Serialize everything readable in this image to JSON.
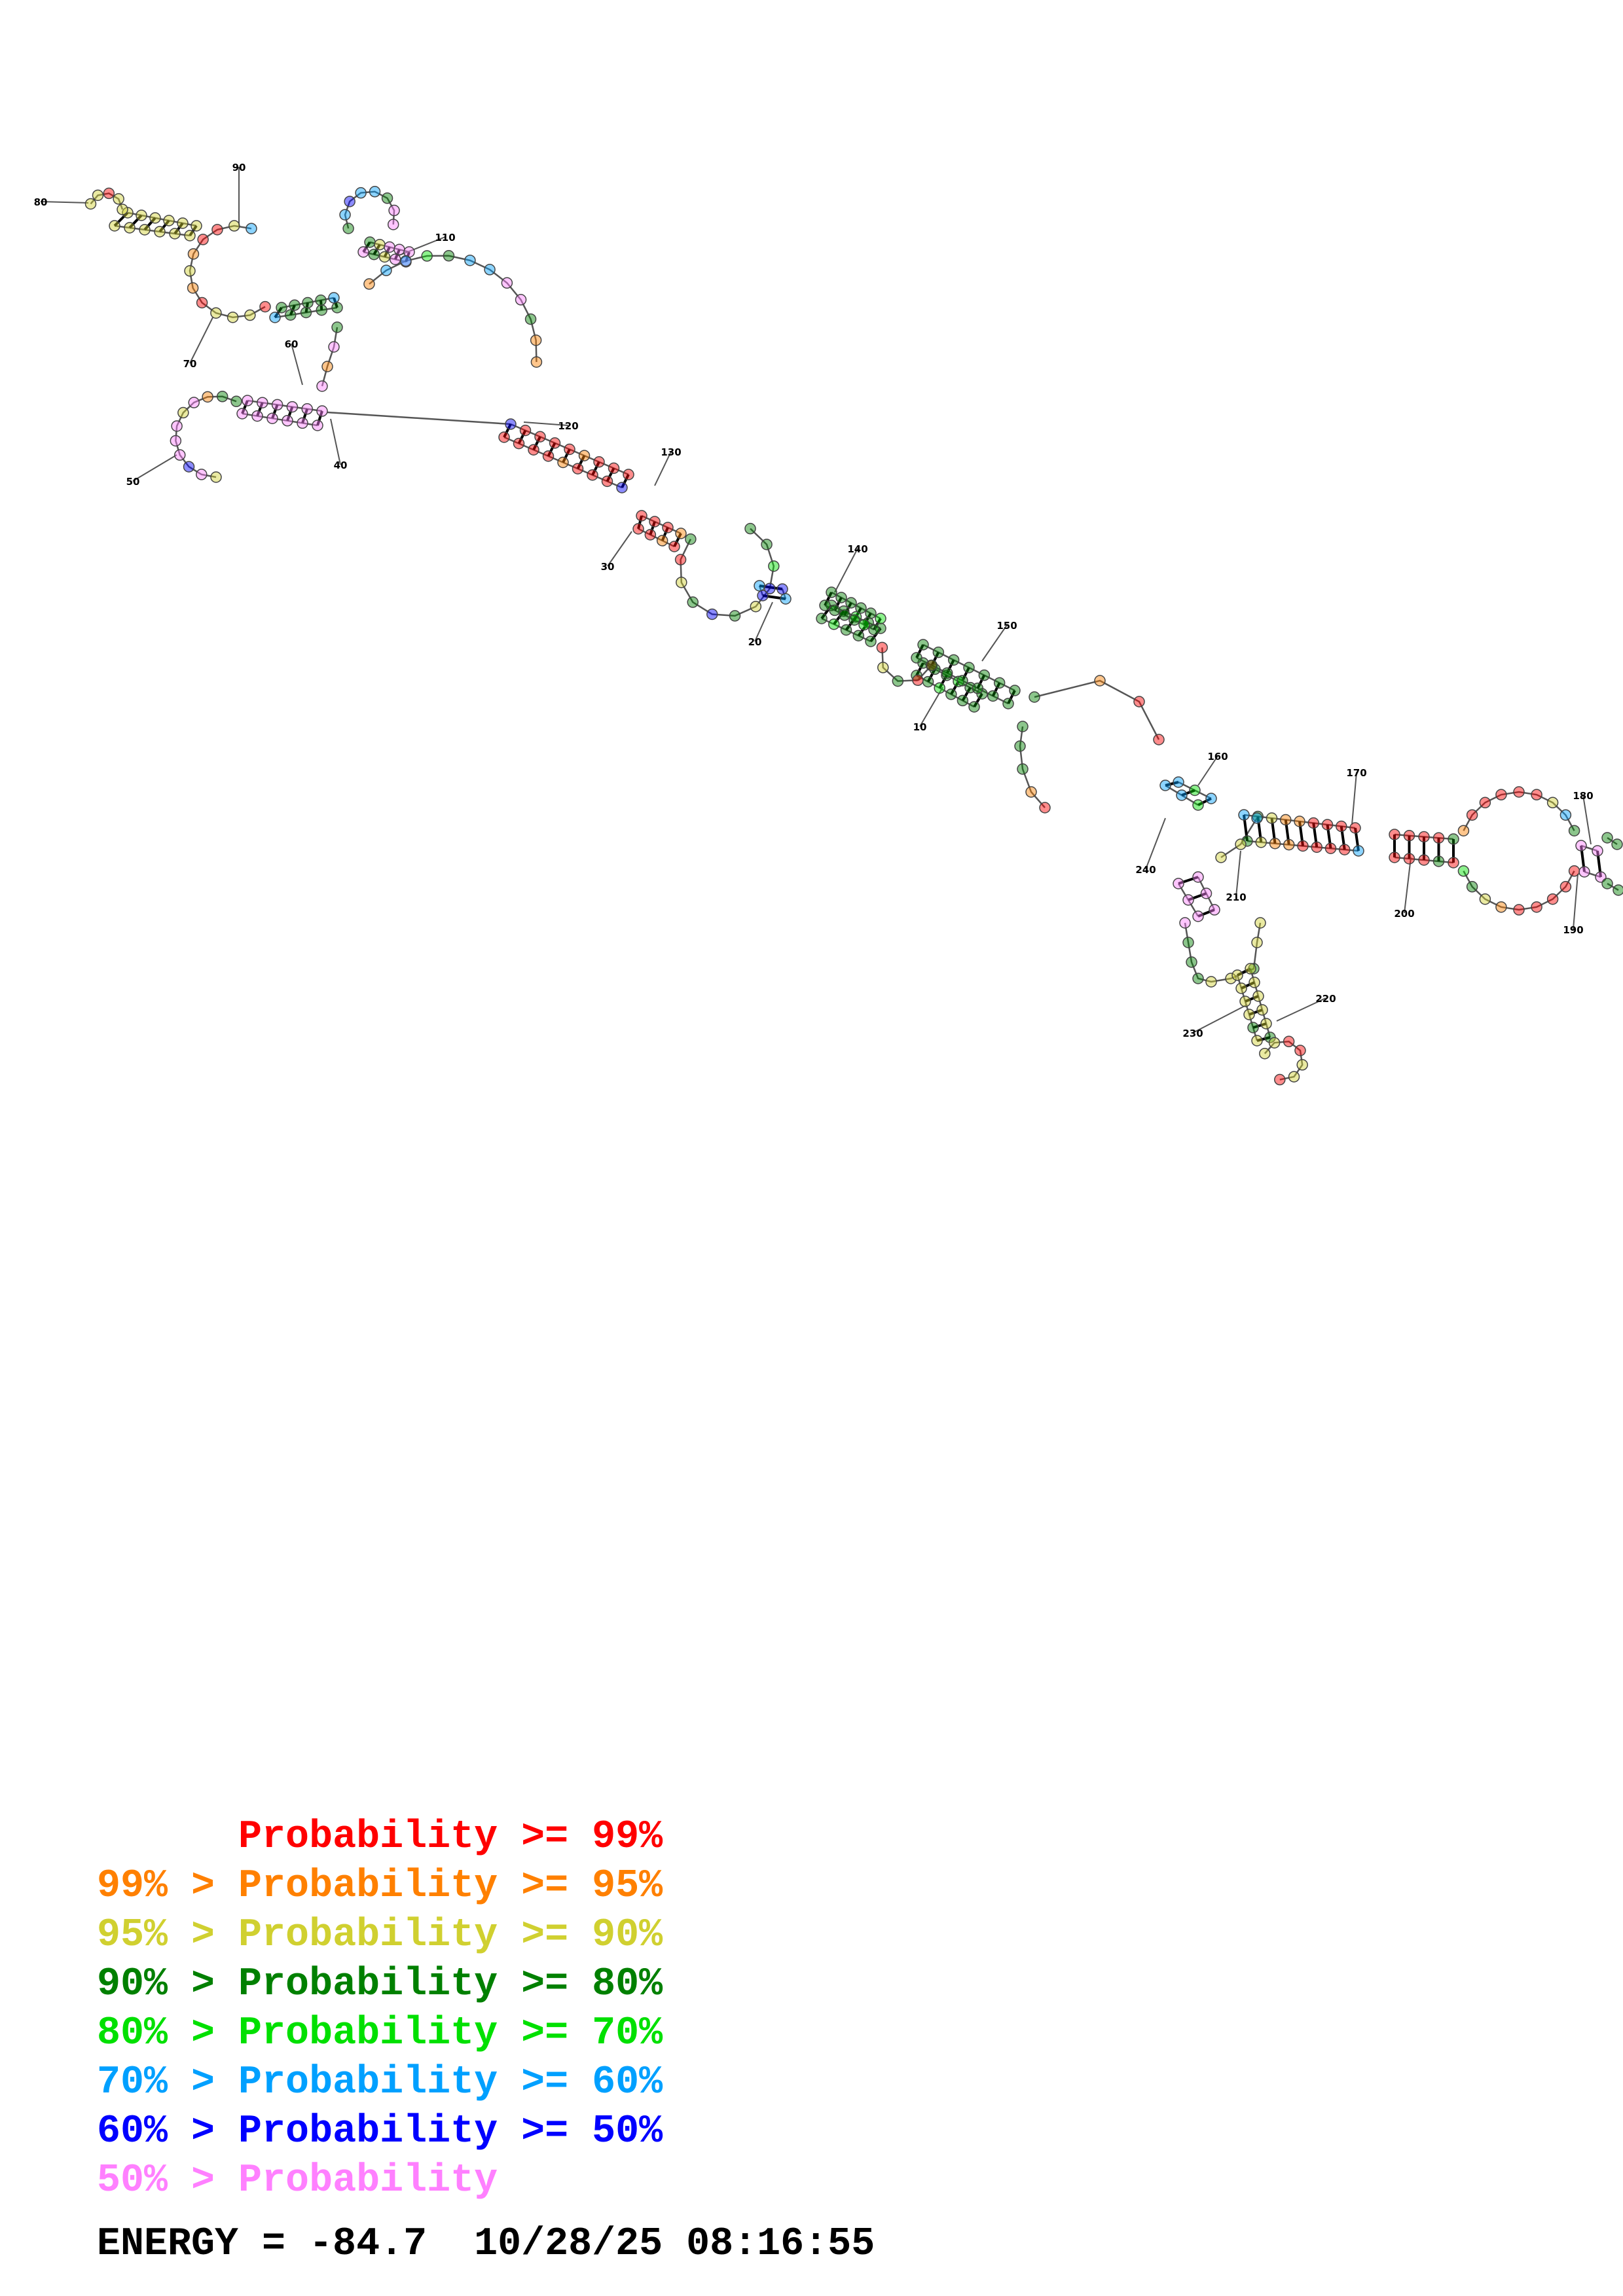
{
  "colors": {
    "p99": "#ff0000",
    "p95": "#ff8000",
    "p90": "#d0d030",
    "p80": "#008000",
    "p70": "#00e000",
    "p60": "#00a0ff",
    "p50": "#0000ff",
    "plow": "#ff80ff"
  },
  "legend": {
    "rows": [
      {
        "prefix": "",
        "label": "Probability >= 99%",
        "color_key": "p99"
      },
      {
        "prefix": "99% > ",
        "label": "Probability >= 95%",
        "color_key": "p95"
      },
      {
        "prefix": "95% > ",
        "label": "Probability >= 90%",
        "color_key": "p90"
      },
      {
        "prefix": "90% > ",
        "label": "Probability >= 80%",
        "color_key": "p80"
      },
      {
        "prefix": "80% > ",
        "label": "Probability >= 70%",
        "color_key": "p70"
      },
      {
        "prefix": "70% > ",
        "label": "Probability >= 60%",
        "color_key": "p60"
      },
      {
        "prefix": "60% > ",
        "label": "Probability >= 50%",
        "color_key": "p50"
      },
      {
        "prefix": "50% > ",
        "label": "Probability",
        "color_key": "plow"
      }
    ]
  },
  "energy": {
    "text": "ENERGY = -84.7  10/28/25 08:16:55"
  },
  "position_labels": [
    "10",
    "20",
    "30",
    "40",
    "50",
    "60",
    "70",
    "80",
    "90",
    "110",
    "120",
    "130",
    "140",
    "150",
    "160",
    "170",
    "180",
    "190",
    "200",
    "210",
    "220",
    "230",
    "240"
  ]
}
